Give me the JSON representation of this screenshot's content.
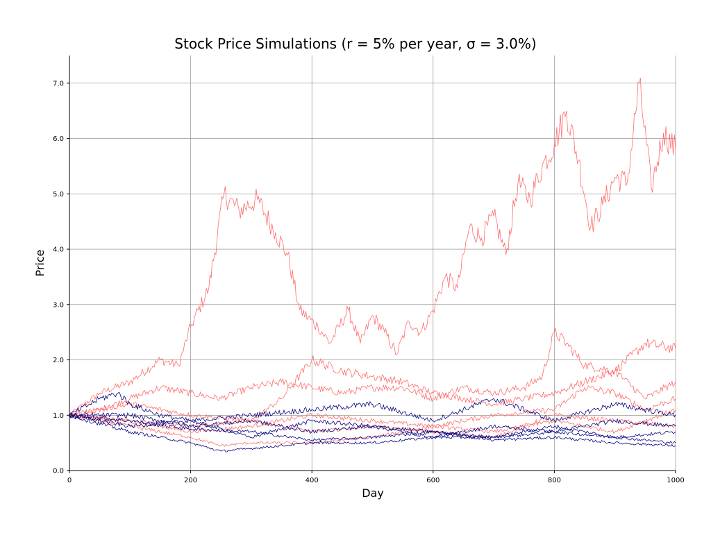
{
  "chart_data": {
    "type": "line",
    "title": "Stock Price Simulations (r = 5% per year, σ = 3.0%)",
    "xlabel": "Day",
    "ylabel": "Price",
    "xlim": [
      0,
      1000
    ],
    "ylim": [
      0,
      7.5
    ],
    "x_ticks": [
      0,
      200,
      400,
      600,
      800,
      1000
    ],
    "x_tick_labels": [
      "0",
      "200",
      "400",
      "600",
      "800",
      "1000"
    ],
    "y_ticks": [
      0,
      1,
      2,
      3,
      4,
      5,
      6,
      7
    ],
    "y_tick_labels": [
      "0.0",
      "1.0",
      "2.0",
      "3.0",
      "4.0",
      "5.0",
      "6.0",
      "7.0"
    ],
    "grid": true,
    "legend": "none",
    "colors": {
      "rising_paths": "#ff6b6b",
      "falling_paths": "#00007f",
      "grid": "#808080",
      "axes": "#000000"
    },
    "series": [
      {
        "color": "#ff6b6b",
        "x": [
          0,
          50,
          100,
          150,
          180,
          200,
          230,
          255,
          280,
          310,
          340,
          360,
          380,
          410,
          430,
          460,
          480,
          500,
          520,
          540,
          560,
          580,
          600,
          620,
          640,
          660,
          680,
          700,
          720,
          740,
          760,
          780,
          800,
          820,
          840,
          860,
          880,
          900,
          920,
          940,
          960,
          980,
          1000
        ],
        "y": [
          1.0,
          1.4,
          1.6,
          2.0,
          1.9,
          2.6,
          3.3,
          5.0,
          4.7,
          4.9,
          4.3,
          3.9,
          2.9,
          2.6,
          2.3,
          2.9,
          2.3,
          2.8,
          2.5,
          2.1,
          2.7,
          2.5,
          2.9,
          3.5,
          3.3,
          4.4,
          4.2,
          4.6,
          3.9,
          5.2,
          4.9,
          5.5,
          5.9,
          6.5,
          5.6,
          4.4,
          4.8,
          5.3,
          5.2,
          7.0,
          5.1,
          6.1,
          5.8
        ]
      },
      {
        "color": "#ff6b6b",
        "x": [
          0,
          50,
          100,
          150,
          200,
          250,
          300,
          350,
          400,
          450,
          500,
          550,
          600,
          650,
          700,
          750,
          780,
          800,
          820,
          850,
          900,
          950,
          1000
        ],
        "y": [
          1.0,
          1.1,
          1.3,
          1.5,
          1.4,
          1.3,
          1.5,
          1.6,
          1.5,
          1.4,
          1.5,
          1.5,
          1.3,
          1.5,
          1.4,
          1.5,
          1.7,
          2.5,
          2.3,
          1.9,
          1.8,
          2.3,
          2.2
        ]
      },
      {
        "color": "#ff6b6b",
        "x": [
          0,
          100,
          200,
          300,
          350,
          400,
          450,
          500,
          550,
          600,
          650,
          700,
          750,
          800,
          850,
          900,
          950,
          1000
        ],
        "y": [
          1.0,
          0.9,
          0.8,
          0.9,
          1.3,
          2.0,
          1.8,
          1.7,
          1.6,
          1.4,
          1.3,
          1.2,
          1.3,
          1.4,
          1.6,
          1.8,
          1.3,
          1.6
        ]
      },
      {
        "color": "#ff6b6b",
        "x": [
          0,
          100,
          200,
          300,
          400,
          500,
          600,
          700,
          800,
          850,
          900,
          950,
          1000
        ],
        "y": [
          1.0,
          0.9,
          0.7,
          0.8,
          1.0,
          0.9,
          0.8,
          1.0,
          1.1,
          1.5,
          1.4,
          1.1,
          1.3
        ]
      },
      {
        "color": "#ff6b6b",
        "x": [
          0,
          100,
          200,
          300,
          400,
          500,
          600,
          700,
          800,
          900,
          1000
        ],
        "y": [
          1.0,
          1.2,
          1.0,
          0.9,
          0.7,
          0.8,
          0.7,
          0.6,
          1.0,
          0.9,
          0.8
        ]
      },
      {
        "color": "#ff6b6b",
        "x": [
          0,
          100,
          200,
          250,
          300,
          400,
          500,
          600,
          700,
          800,
          900,
          1000
        ],
        "y": [
          1.0,
          0.8,
          0.6,
          0.45,
          0.5,
          0.5,
          0.6,
          0.8,
          0.7,
          0.9,
          0.7,
          1.1
        ]
      },
      {
        "color": "#00007f",
        "x": [
          0,
          50,
          80,
          100,
          150,
          200,
          300,
          400,
          500,
          600,
          700,
          800,
          900,
          1000
        ],
        "y": [
          1.0,
          1.3,
          1.4,
          1.2,
          1.0,
          0.9,
          1.0,
          1.1,
          1.2,
          0.9,
          1.3,
          0.9,
          1.2,
          1.0
        ]
      },
      {
        "color": "#00007f",
        "x": [
          0,
          100,
          200,
          300,
          400,
          500,
          600,
          700,
          800,
          900,
          1000
        ],
        "y": [
          1.0,
          0.8,
          0.9,
          0.6,
          0.9,
          0.8,
          0.7,
          0.6,
          0.8,
          0.6,
          0.7
        ]
      },
      {
        "color": "#00007f",
        "x": [
          0,
          100,
          200,
          250,
          300,
          400,
          500,
          600,
          700,
          800,
          900,
          1000
        ],
        "y": [
          1.0,
          0.7,
          0.5,
          0.35,
          0.4,
          0.5,
          0.5,
          0.6,
          0.6,
          0.7,
          0.6,
          0.5
        ]
      },
      {
        "color": "#00007f",
        "x": [
          0,
          100,
          200,
          300,
          400,
          500,
          600,
          700,
          800,
          900,
          1000
        ],
        "y": [
          1.0,
          0.9,
          0.75,
          0.7,
          0.55,
          0.6,
          0.7,
          0.55,
          0.6,
          0.5,
          0.45
        ]
      },
      {
        "color": "#00007f",
        "x": [
          0,
          100,
          200,
          300,
          400,
          500,
          600,
          700,
          800,
          900,
          1000
        ],
        "y": [
          1.0,
          1.0,
          0.8,
          0.9,
          0.7,
          0.8,
          0.6,
          0.8,
          0.7,
          0.9,
          0.8
        ]
      }
    ]
  }
}
